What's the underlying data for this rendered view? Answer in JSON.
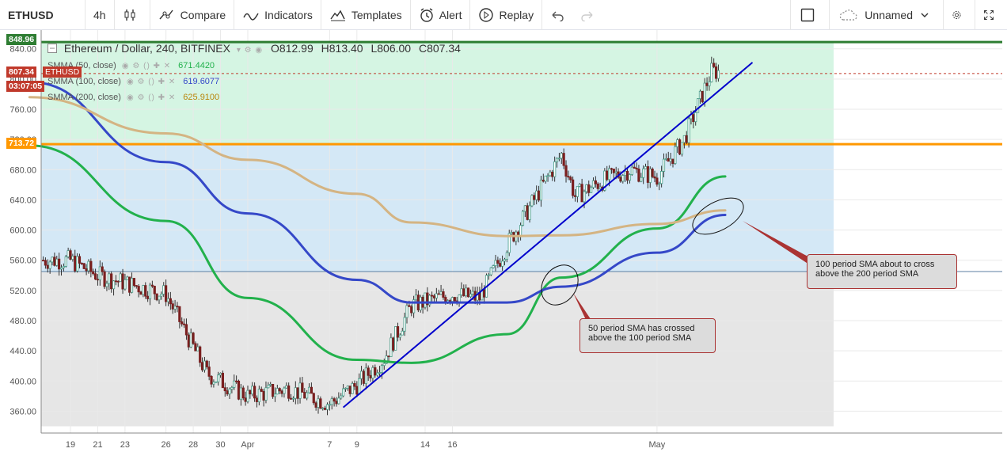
{
  "toolbar": {
    "symbol": "ETHUSD",
    "interval": "4h",
    "compare_label": "Compare",
    "indicators_label": "Indicators",
    "templates_label": "Templates",
    "alert_label": "Alert",
    "replay_label": "Replay",
    "layout_name": "Unnamed"
  },
  "legend": {
    "title": "Ethereum / Dollar, 240, BITFINEX",
    "open": "O812.99",
    "high": "H813.40",
    "low": "L806.00",
    "close": "C807.34",
    "sma50_label": "SMMA (50, close)",
    "sma50_value": "671.4420",
    "sma100_label": "SMMA (100, close)",
    "sma100_value": "619.6077",
    "sma200_label": "SMMA (200, close)",
    "sma200_value": "625.9100"
  },
  "price_tags": {
    "top": "848.96",
    "current": "807.34",
    "symbol": "ETHUSD",
    "countdown": "03:07:05",
    "resistance": "713.72"
  },
  "annotations": {
    "callout_sma50": "50 period SMA has crossed above the 100 period SMA",
    "callout_sma100": "100 period SMA about to cross above the 200  period SMA"
  },
  "colors": {
    "sma50": "#22b14c",
    "sma100": "#3548c8",
    "sma200": "#d4b483",
    "resistance": "#ff9800",
    "top_line": "#2e7d32",
    "trendline": "#0000cc",
    "current_price": "#c0392b",
    "candle_up": "#4a9e8a",
    "candle_down": "#7a1f1f"
  },
  "chart_data": {
    "type": "candlestick",
    "symbol": "ETHUSD",
    "timeframe": "240",
    "ylim": [
      340,
      860
    ],
    "y_ticks": [
      "840.00",
      "800.00",
      "760.00",
      "720.00",
      "680.00",
      "640.00",
      "600.00",
      "560.00",
      "520.00",
      "480.00",
      "440.00",
      "400.00",
      "360.00"
    ],
    "x_ticks": [
      "19",
      "26",
      "Apr",
      "9",
      "16",
      "23",
      "30",
      "May",
      "7",
      "14",
      "21",
      "28"
    ],
    "close_anchors": [
      [
        "19",
        560
      ],
      [
        "21",
        540
      ],
      [
        "26",
        515
      ],
      [
        "29",
        410
      ],
      [
        "Apr 1",
        380
      ],
      [
        "Apr 4",
        390
      ],
      [
        "Apr 7",
        370
      ],
      [
        "Apr 9",
        395
      ],
      [
        "Apr 11",
        430
      ],
      [
        "Apr 13",
        500
      ],
      [
        "Apr 16",
        515
      ],
      [
        "Apr 18",
        510
      ],
      [
        "Apr 20",
        580
      ],
      [
        "Apr 22",
        640
      ],
      [
        "Apr 24",
        700
      ],
      [
        "Apr 25",
        645
      ],
      [
        "Apr 27",
        665
      ],
      [
        "Apr 29",
        680
      ],
      [
        "May 1",
        670
      ],
      [
        "May 3",
        720
      ],
      [
        "May 5",
        810
      ]
    ],
    "series": [
      {
        "name": "SMMA (50, close)",
        "last": 671.442,
        "points": [
          [
            "Mar 16",
            712
          ],
          [
            "26",
            612
          ],
          [
            "Apr 1",
            510
          ],
          [
            "Apr 9",
            428
          ],
          [
            "Apr 13",
            424
          ],
          [
            "Apr 20",
            462
          ],
          [
            "Apr 24",
            537
          ],
          [
            "May 1",
            602
          ],
          [
            "May 6",
            671
          ]
        ]
      },
      {
        "name": "SMMA (100, close)",
        "last": 619.6077,
        "points": [
          [
            "Mar 16",
            796
          ],
          [
            "26",
            690
          ],
          [
            "Apr 1",
            622
          ],
          [
            "Apr 9",
            534
          ],
          [
            "Apr 13",
            504
          ],
          [
            "Apr 20",
            504
          ],
          [
            "Apr 24",
            525
          ],
          [
            "May 1",
            570
          ],
          [
            "May 6",
            620
          ]
        ]
      },
      {
        "name": "SMMA (200, close)",
        "last": 625.91,
        "points": [
          [
            "Mar 16",
            776
          ],
          [
            "26",
            728
          ],
          [
            "Apr 1",
            693
          ],
          [
            "Apr 9",
            648
          ],
          [
            "Apr 13",
            610
          ],
          [
            "Apr 20",
            592
          ],
          [
            "Apr 24",
            593
          ],
          [
            "May 1",
            608
          ],
          [
            "May 6",
            626
          ]
        ]
      }
    ],
    "horizontal_lines": [
      {
        "value": 848.96
      },
      {
        "value": 807.34
      },
      {
        "value": 713.72
      },
      {
        "value": 545
      }
    ],
    "trendline": {
      "from": [
        "Apr 8",
        365
      ],
      "to": [
        "May 8",
        822
      ]
    },
    "shaded_zones": [
      {
        "from": 713.72,
        "to": 848.96
      },
      {
        "from": 545,
        "to": 713.72
      },
      {
        "from": 340,
        "to": 545
      }
    ]
  }
}
